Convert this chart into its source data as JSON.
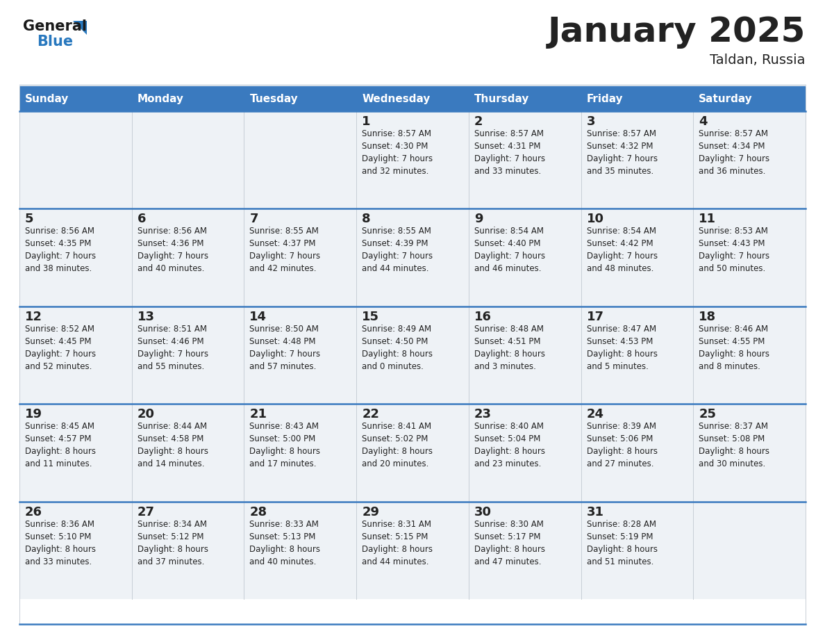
{
  "title": "January 2025",
  "subtitle": "Taldan, Russia",
  "header_color": "#3a7abf",
  "header_text_color": "#ffffff",
  "cell_bg_color": "#eef2f6",
  "border_color": "#3a7abf",
  "grid_color": "#c0c8d0",
  "text_color": "#222222",
  "days_of_week": [
    "Sunday",
    "Monday",
    "Tuesday",
    "Wednesday",
    "Thursday",
    "Friday",
    "Saturday"
  ],
  "calendar_data": [
    [
      {
        "day": "",
        "info": ""
      },
      {
        "day": "",
        "info": ""
      },
      {
        "day": "",
        "info": ""
      },
      {
        "day": "1",
        "info": "Sunrise: 8:57 AM\nSunset: 4:30 PM\nDaylight: 7 hours\nand 32 minutes."
      },
      {
        "day": "2",
        "info": "Sunrise: 8:57 AM\nSunset: 4:31 PM\nDaylight: 7 hours\nand 33 minutes."
      },
      {
        "day": "3",
        "info": "Sunrise: 8:57 AM\nSunset: 4:32 PM\nDaylight: 7 hours\nand 35 minutes."
      },
      {
        "day": "4",
        "info": "Sunrise: 8:57 AM\nSunset: 4:34 PM\nDaylight: 7 hours\nand 36 minutes."
      }
    ],
    [
      {
        "day": "5",
        "info": "Sunrise: 8:56 AM\nSunset: 4:35 PM\nDaylight: 7 hours\nand 38 minutes."
      },
      {
        "day": "6",
        "info": "Sunrise: 8:56 AM\nSunset: 4:36 PM\nDaylight: 7 hours\nand 40 minutes."
      },
      {
        "day": "7",
        "info": "Sunrise: 8:55 AM\nSunset: 4:37 PM\nDaylight: 7 hours\nand 42 minutes."
      },
      {
        "day": "8",
        "info": "Sunrise: 8:55 AM\nSunset: 4:39 PM\nDaylight: 7 hours\nand 44 minutes."
      },
      {
        "day": "9",
        "info": "Sunrise: 8:54 AM\nSunset: 4:40 PM\nDaylight: 7 hours\nand 46 minutes."
      },
      {
        "day": "10",
        "info": "Sunrise: 8:54 AM\nSunset: 4:42 PM\nDaylight: 7 hours\nand 48 minutes."
      },
      {
        "day": "11",
        "info": "Sunrise: 8:53 AM\nSunset: 4:43 PM\nDaylight: 7 hours\nand 50 minutes."
      }
    ],
    [
      {
        "day": "12",
        "info": "Sunrise: 8:52 AM\nSunset: 4:45 PM\nDaylight: 7 hours\nand 52 minutes."
      },
      {
        "day": "13",
        "info": "Sunrise: 8:51 AM\nSunset: 4:46 PM\nDaylight: 7 hours\nand 55 minutes."
      },
      {
        "day": "14",
        "info": "Sunrise: 8:50 AM\nSunset: 4:48 PM\nDaylight: 7 hours\nand 57 minutes."
      },
      {
        "day": "15",
        "info": "Sunrise: 8:49 AM\nSunset: 4:50 PM\nDaylight: 8 hours\nand 0 minutes."
      },
      {
        "day": "16",
        "info": "Sunrise: 8:48 AM\nSunset: 4:51 PM\nDaylight: 8 hours\nand 3 minutes."
      },
      {
        "day": "17",
        "info": "Sunrise: 8:47 AM\nSunset: 4:53 PM\nDaylight: 8 hours\nand 5 minutes."
      },
      {
        "day": "18",
        "info": "Sunrise: 8:46 AM\nSunset: 4:55 PM\nDaylight: 8 hours\nand 8 minutes."
      }
    ],
    [
      {
        "day": "19",
        "info": "Sunrise: 8:45 AM\nSunset: 4:57 PM\nDaylight: 8 hours\nand 11 minutes."
      },
      {
        "day": "20",
        "info": "Sunrise: 8:44 AM\nSunset: 4:58 PM\nDaylight: 8 hours\nand 14 minutes."
      },
      {
        "day": "21",
        "info": "Sunrise: 8:43 AM\nSunset: 5:00 PM\nDaylight: 8 hours\nand 17 minutes."
      },
      {
        "day": "22",
        "info": "Sunrise: 8:41 AM\nSunset: 5:02 PM\nDaylight: 8 hours\nand 20 minutes."
      },
      {
        "day": "23",
        "info": "Sunrise: 8:40 AM\nSunset: 5:04 PM\nDaylight: 8 hours\nand 23 minutes."
      },
      {
        "day": "24",
        "info": "Sunrise: 8:39 AM\nSunset: 5:06 PM\nDaylight: 8 hours\nand 27 minutes."
      },
      {
        "day": "25",
        "info": "Sunrise: 8:37 AM\nSunset: 5:08 PM\nDaylight: 8 hours\nand 30 minutes."
      }
    ],
    [
      {
        "day": "26",
        "info": "Sunrise: 8:36 AM\nSunset: 5:10 PM\nDaylight: 8 hours\nand 33 minutes."
      },
      {
        "day": "27",
        "info": "Sunrise: 8:34 AM\nSunset: 5:12 PM\nDaylight: 8 hours\nand 37 minutes."
      },
      {
        "day": "28",
        "info": "Sunrise: 8:33 AM\nSunset: 5:13 PM\nDaylight: 8 hours\nand 40 minutes."
      },
      {
        "day": "29",
        "info": "Sunrise: 8:31 AM\nSunset: 5:15 PM\nDaylight: 8 hours\nand 44 minutes."
      },
      {
        "day": "30",
        "info": "Sunrise: 8:30 AM\nSunset: 5:17 PM\nDaylight: 8 hours\nand 47 minutes."
      },
      {
        "day": "31",
        "info": "Sunrise: 8:28 AM\nSunset: 5:19 PM\nDaylight: 8 hours\nand 51 minutes."
      },
      {
        "day": "",
        "info": ""
      }
    ]
  ],
  "logo_general_color": "#1a1a1a",
  "logo_blue_color": "#2878be",
  "logo_triangle_color": "#2878be",
  "title_fontsize": 36,
  "subtitle_fontsize": 14,
  "header_fontsize": 11,
  "day_num_fontsize": 13,
  "info_fontsize": 8.5
}
